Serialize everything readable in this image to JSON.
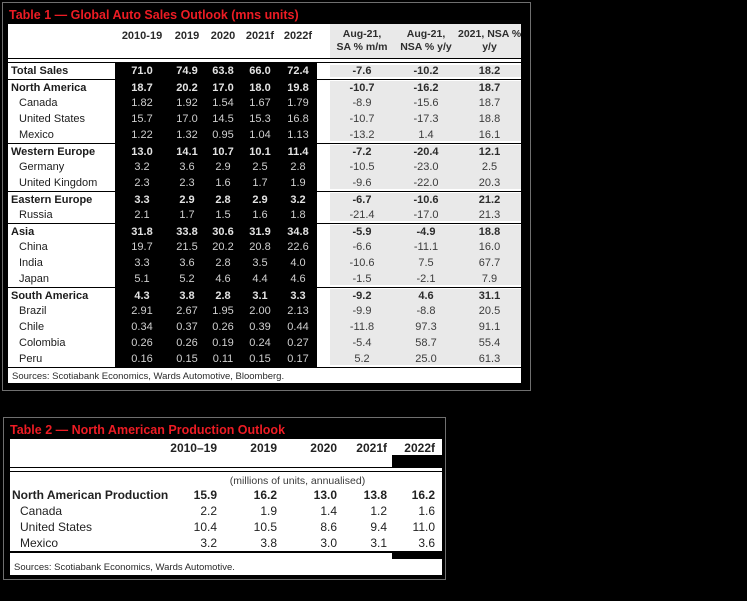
{
  "colors": {
    "accent_red": "#ed1c24",
    "page_background": "#000000",
    "inverted_block_bg": "#000000",
    "inverted_block_text": "#cfcfcf",
    "momentum_block_bg": "#e9e9e9",
    "panel_border_gray": "#6f6f6f"
  },
  "table1": {
    "title": "Table 1 — Global Auto Sales Outlook (mns units)",
    "year_headers": [
      "2010-19",
      "2019",
      "2020",
      "2021f",
      "2022f"
    ],
    "right_headers": [
      {
        "line1": "Aug-21,",
        "line2": "SA % m/m"
      },
      {
        "line1": "Aug-21,",
        "line2": "NSA % y/y"
      },
      {
        "line1": "2021, NSA %",
        "line2": "y/y"
      }
    ],
    "sections": [
      {
        "rows": [
          {
            "label": "Total Sales",
            "bold": true,
            "indent": false,
            "values": [
              "71.0",
              "74.9",
              "63.8",
              "66.0",
              "72.4"
            ],
            "right": [
              "-7.6",
              "-10.2",
              "18.2"
            ]
          }
        ]
      },
      {
        "rows": [
          {
            "label": "North America",
            "bold": true,
            "indent": false,
            "values": [
              "18.7",
              "20.2",
              "17.0",
              "18.0",
              "19.8"
            ],
            "right": [
              "-10.7",
              "-16.2",
              "18.7"
            ]
          },
          {
            "label": "Canada",
            "bold": false,
            "indent": true,
            "values": [
              "1.82",
              "1.92",
              "1.54",
              "1.67",
              "1.79"
            ],
            "right": [
              "-8.9",
              "-15.6",
              "18.7"
            ]
          },
          {
            "label": "United States",
            "bold": false,
            "indent": true,
            "values": [
              "15.7",
              "17.0",
              "14.5",
              "15.3",
              "16.8"
            ],
            "right": [
              "-10.7",
              "-17.3",
              "18.8"
            ]
          },
          {
            "label": "Mexico",
            "bold": false,
            "indent": true,
            "values": [
              "1.22",
              "1.32",
              "0.95",
              "1.04",
              "1.13"
            ],
            "right": [
              "-13.2",
              "1.4",
              "16.1"
            ]
          }
        ]
      },
      {
        "rows": [
          {
            "label": "Western Europe",
            "bold": true,
            "indent": false,
            "values": [
              "13.0",
              "14.1",
              "10.7",
              "10.1",
              "11.4"
            ],
            "right": [
              "-7.2",
              "-20.4",
              "12.1"
            ]
          },
          {
            "label": "Germany",
            "bold": false,
            "indent": true,
            "values": [
              "3.2",
              "3.6",
              "2.9",
              "2.5",
              "2.8"
            ],
            "right": [
              "-10.5",
              "-23.0",
              "2.5"
            ]
          },
          {
            "label": "United Kingdom",
            "bold": false,
            "indent": true,
            "values": [
              "2.3",
              "2.3",
              "1.6",
              "1.7",
              "1.9"
            ],
            "right": [
              "-9.6",
              "-22.0",
              "20.3"
            ]
          }
        ]
      },
      {
        "rows": [
          {
            "label": "Eastern Europe",
            "bold": true,
            "indent": false,
            "values": [
              "3.3",
              "2.9",
              "2.8",
              "2.9",
              "3.2"
            ],
            "right": [
              "-6.7",
              "-10.6",
              "21.2"
            ]
          },
          {
            "label": "Russia",
            "bold": false,
            "indent": true,
            "values": [
              "2.1",
              "1.7",
              "1.5",
              "1.6",
              "1.8"
            ],
            "right": [
              "-21.4",
              "-17.0",
              "21.3"
            ]
          }
        ]
      },
      {
        "rows": [
          {
            "label": "Asia",
            "bold": true,
            "indent": false,
            "values": [
              "31.8",
              "33.8",
              "30.6",
              "31.9",
              "34.8"
            ],
            "right": [
              "-5.9",
              "-4.9",
              "18.8"
            ]
          },
          {
            "label": "China",
            "bold": false,
            "indent": true,
            "values": [
              "19.7",
              "21.5",
              "20.2",
              "20.8",
              "22.6"
            ],
            "right": [
              "-6.6",
              "-11.1",
              "16.0"
            ]
          },
          {
            "label": "India",
            "bold": false,
            "indent": true,
            "values": [
              "3.3",
              "3.6",
              "2.8",
              "3.5",
              "4.0"
            ],
            "right": [
              "-10.6",
              "7.5",
              "67.7"
            ]
          },
          {
            "label": "Japan",
            "bold": false,
            "indent": true,
            "values": [
              "5.1",
              "5.2",
              "4.6",
              "4.4",
              "4.6"
            ],
            "right": [
              "-1.5",
              "-2.1",
              "7.9"
            ]
          }
        ]
      },
      {
        "rows": [
          {
            "label": "South America",
            "bold": true,
            "indent": false,
            "values": [
              "4.3",
              "3.8",
              "2.8",
              "3.1",
              "3.3"
            ],
            "right": [
              "-9.2",
              "4.6",
              "31.1"
            ]
          },
          {
            "label": "Brazil",
            "bold": false,
            "indent": true,
            "values": [
              "2.91",
              "2.67",
              "1.95",
              "2.00",
              "2.13"
            ],
            "right": [
              "-9.9",
              "-8.8",
              "20.5"
            ]
          },
          {
            "label": "Chile",
            "bold": false,
            "indent": true,
            "values": [
              "0.34",
              "0.37",
              "0.26",
              "0.39",
              "0.44"
            ],
            "right": [
              "-11.8",
              "97.3",
              "91.1"
            ]
          },
          {
            "label": "Colombia",
            "bold": false,
            "indent": true,
            "values": [
              "0.26",
              "0.26",
              "0.19",
              "0.24",
              "0.27"
            ],
            "right": [
              "-5.4",
              "58.7",
              "55.4"
            ]
          },
          {
            "label": "Peru",
            "bold": false,
            "indent": true,
            "values": [
              "0.16",
              "0.15",
              "0.11",
              "0.15",
              "0.17"
            ],
            "right": [
              "5.2",
              "25.0",
              "61.3"
            ]
          }
        ]
      }
    ],
    "sources": "Sources: Scotiabank Economics, Wards Automotive, Bloomberg."
  },
  "table2": {
    "title": "Table 2 — North American Production Outlook",
    "year_headers": [
      "2010–19",
      "2019",
      "2020",
      "2021f",
      "2022f"
    ],
    "units_note": "(millions of units, annualised)",
    "rows": [
      {
        "label": "North American Production",
        "bold": true,
        "indent": false,
        "values": [
          "15.9",
          "16.2",
          "13.0",
          "13.8",
          "16.2"
        ]
      },
      {
        "label": "Canada",
        "bold": false,
        "indent": true,
        "values": [
          "2.2",
          "1.9",
          "1.4",
          "1.2",
          "1.6"
        ]
      },
      {
        "label": "United States",
        "bold": false,
        "indent": true,
        "values": [
          "10.4",
          "10.5",
          "8.6",
          "9.4",
          "11.0"
        ]
      },
      {
        "label": "Mexico",
        "bold": false,
        "indent": true,
        "values": [
          "3.2",
          "3.8",
          "3.0",
          "3.1",
          "3.6"
        ]
      }
    ],
    "sources": "Sources: Scotiabank Economics, Wards Automotive."
  }
}
